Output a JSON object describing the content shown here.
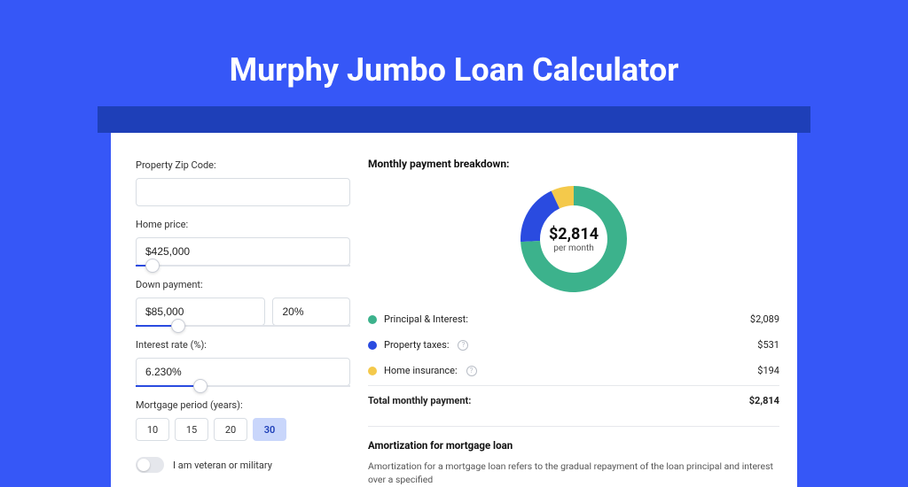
{
  "colors": {
    "page_bg": "#3657f7",
    "header_bar": "#1e3fb8",
    "card_bg": "#ffffff",
    "slider_fill": "#2a4be0",
    "period_active_bg": "#c9d6fb"
  },
  "title": "Murphy Jumbo Loan Calculator",
  "form": {
    "zip_label": "Property Zip Code:",
    "zip_value": "",
    "home_price_label": "Home price:",
    "home_price_value": "$425,000",
    "home_price_slider_pct": 8,
    "down_payment_label": "Down payment:",
    "down_payment_value": "$85,000",
    "down_payment_pct_value": "20%",
    "down_payment_slider_pct": 20,
    "interest_label": "Interest rate (%):",
    "interest_value": "6.230%",
    "interest_slider_pct": 30,
    "period_label": "Mortgage period (years):",
    "period_options": [
      "10",
      "15",
      "20",
      "30"
    ],
    "period_selected": "30",
    "veteran_label": "I am veteran or military"
  },
  "breakdown": {
    "title": "Monthly payment breakdown:",
    "donut": {
      "amount": "$2,814",
      "sub": "per month",
      "slices": [
        {
          "label": "Principal & Interest",
          "value": 2089,
          "color": "#3cb28c",
          "deg": 267
        },
        {
          "label": "Property taxes",
          "value": 531,
          "color": "#2a4be0",
          "deg": 68
        },
        {
          "label": "Home insurance",
          "value": 194,
          "color": "#f4c94b",
          "deg": 25
        }
      ]
    },
    "rows": [
      {
        "dot": "#3cb28c",
        "label": "Principal & Interest:",
        "info": false,
        "amount": "$2,089"
      },
      {
        "dot": "#2a4be0",
        "label": "Property taxes:",
        "info": true,
        "amount": "$531"
      },
      {
        "dot": "#f4c94b",
        "label": "Home insurance:",
        "info": true,
        "amount": "$194"
      }
    ],
    "total_label": "Total monthly payment:",
    "total_amount": "$2,814"
  },
  "amort": {
    "title": "Amortization for mortgage loan",
    "text": "Amortization for a mortgage loan refers to the gradual repayment of the loan principal and interest over a specified"
  }
}
